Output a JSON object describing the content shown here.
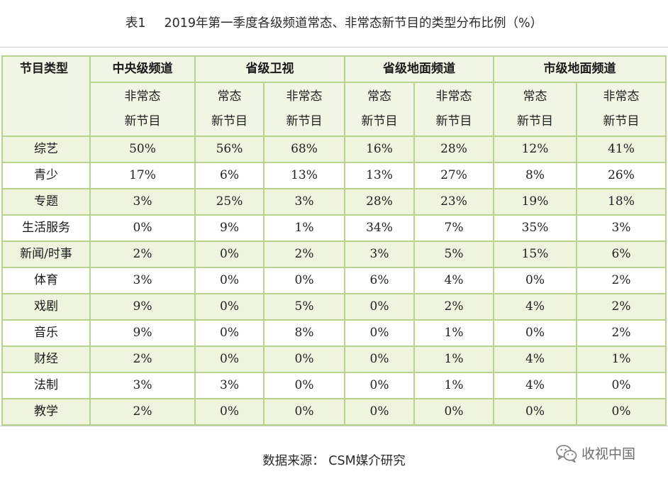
{
  "title": {
    "table_no": "表1",
    "text": "2019年第一季度各级频道常态、非常态新节目的类型分布比例（%）"
  },
  "table": {
    "corner_label": "节目类型",
    "groups": [
      "中央级频道",
      "省级卫视",
      "省级地面频道",
      "市级地面频道"
    ],
    "subheaders": [
      [
        "非常态",
        "新节目"
      ],
      [
        "常态",
        "新节目"
      ],
      [
        "非常态",
        "新节目"
      ],
      [
        "常态",
        "新节目"
      ],
      [
        "非常态",
        "新节目"
      ],
      [
        "常态",
        "新节目"
      ],
      [
        "非常态",
        "新节目"
      ]
    ],
    "rows": [
      {
        "label": "综艺",
        "values": [
          "50%",
          "56%",
          "68%",
          "16%",
          "28%",
          "12%",
          "41%"
        ]
      },
      {
        "label": "青少",
        "values": [
          "17%",
          "6%",
          "13%",
          "13%",
          "27%",
          "8%",
          "26%"
        ]
      },
      {
        "label": "专题",
        "values": [
          "3%",
          "25%",
          "3%",
          "28%",
          "23%",
          "19%",
          "18%"
        ]
      },
      {
        "label": "生活服务",
        "values": [
          "0%",
          "9%",
          "1%",
          "34%",
          "7%",
          "35%",
          "3%"
        ]
      },
      {
        "label": "新闻/时事",
        "values": [
          "2%",
          "0%",
          "2%",
          "3%",
          "5%",
          "15%",
          "6%"
        ]
      },
      {
        "label": "体育",
        "values": [
          "3%",
          "0%",
          "0%",
          "6%",
          "4%",
          "0%",
          "2%"
        ]
      },
      {
        "label": "戏剧",
        "values": [
          "9%",
          "0%",
          "5%",
          "0%",
          "2%",
          "4%",
          "2%"
        ]
      },
      {
        "label": "音乐",
        "values": [
          "9%",
          "0%",
          "8%",
          "0%",
          "1%",
          "0%",
          "2%"
        ]
      },
      {
        "label": "财经",
        "values": [
          "2%",
          "0%",
          "0%",
          "0%",
          "1%",
          "4%",
          "1%"
        ]
      },
      {
        "label": "法制",
        "values": [
          "3%",
          "3%",
          "0%",
          "0%",
          "1%",
          "4%",
          "0%"
        ]
      },
      {
        "label": "教学",
        "values": [
          "2%",
          "0%",
          "0%",
          "0%",
          "0%",
          "0%",
          "0%"
        ]
      }
    ]
  },
  "source": "数据来源：  CSM媒介研究",
  "watermark": {
    "icon": "wechat-icon",
    "text": "收视中国"
  },
  "colors": {
    "border": "#b8d38a",
    "band": "#eef4de",
    "header_bg": "#f1f6e4"
  }
}
